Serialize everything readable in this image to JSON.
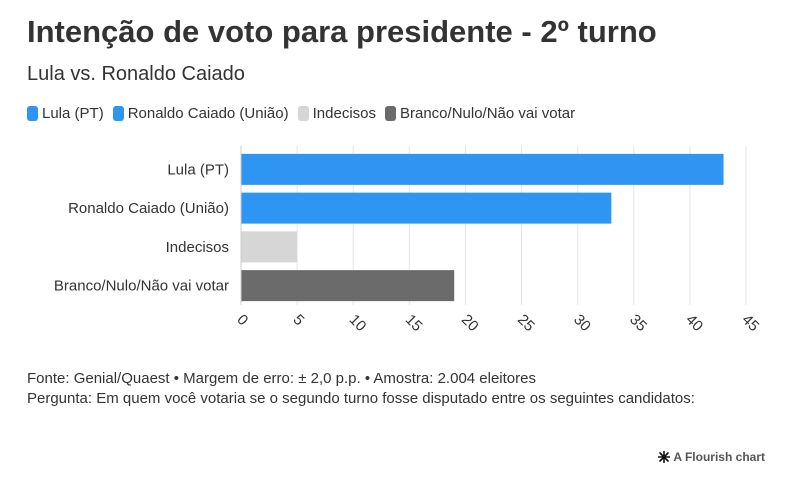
{
  "header": {
    "title": "Intenção de voto para presidente - 2º turno",
    "subtitle": "Lula vs. Ronaldo Caiado"
  },
  "legend": [
    {
      "label": "Lula (PT)",
      "color": "#2f95f2"
    },
    {
      "label": "Ronaldo Caiado (União)",
      "color": "#2f95f2"
    },
    {
      "label": "Indecisos",
      "color": "#d6d6d6"
    },
    {
      "label": "Branco/Nulo/Não vai votar",
      "color": "#6b6b6b"
    }
  ],
  "chart_data": {
    "type": "bar",
    "orientation": "horizontal",
    "categories": [
      "Lula (PT)",
      "Ronaldo Caiado (União)",
      "Indecisos",
      "Branco/Nulo/Não vai votar"
    ],
    "values": [
      43,
      33,
      5,
      19
    ],
    "colors": [
      "#2f95f2",
      "#2f95f2",
      "#d6d6d6",
      "#6b6b6b"
    ],
    "xlim": [
      0,
      45
    ],
    "xticks": [
      "0",
      "5",
      "10",
      "15",
      "20",
      "25",
      "30",
      "35",
      "40",
      "45"
    ],
    "grid": "vertical",
    "legend_position": "top"
  },
  "footer": {
    "source": "Fonte: Genial/Quaest • Margem de erro: ± 2,0 p.p. • Amostra: 2.004 eleitores",
    "question": "Pergunta: Em quem você votaria se o segundo turno fosse disputado entre os seguintes candidatos:"
  },
  "credit": {
    "text": "A Flourish chart",
    "icon": "flourish-star-icon"
  }
}
